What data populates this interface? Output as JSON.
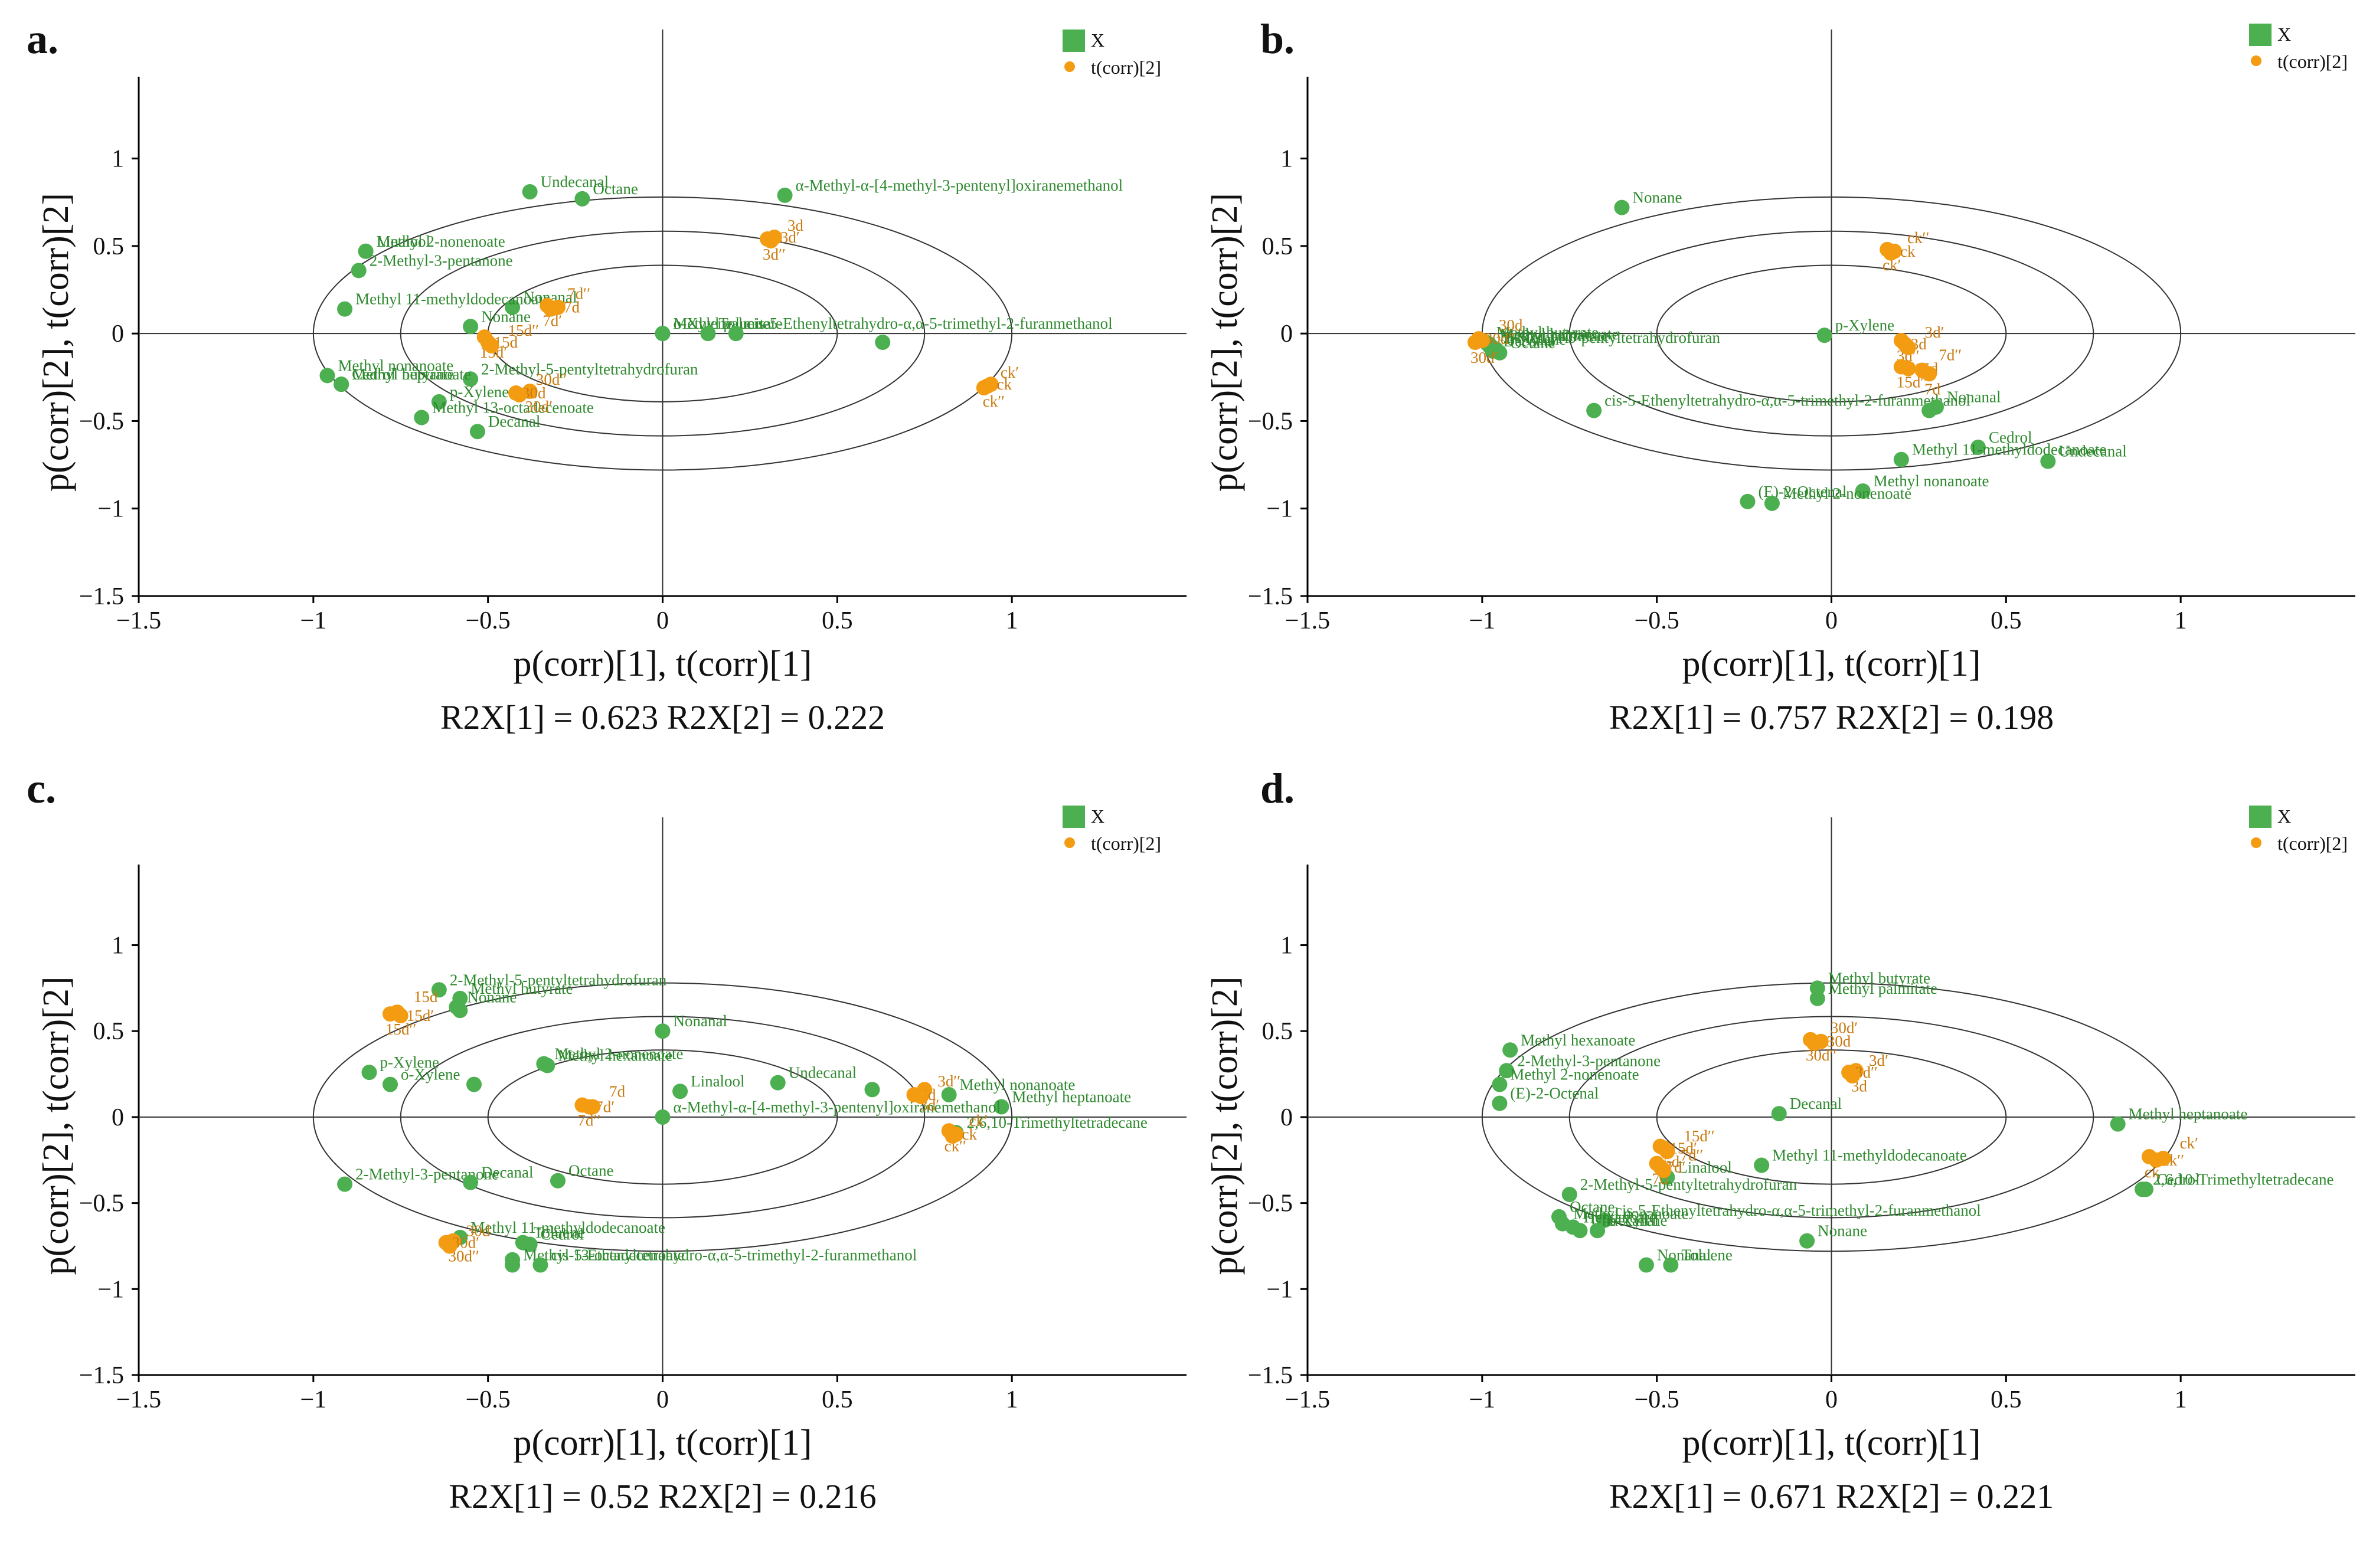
{
  "colors": {
    "variable": "#4caf50",
    "variable_text": "#2f8a2f",
    "observation": "#f39c12",
    "observation_text": "#c97a10",
    "axis": "#333333",
    "frame": "#000000"
  },
  "chart_data": [
    {
      "panel": "a.",
      "type": "scatter",
      "xlabel": "p(corr)[1], t(corr)[1]",
      "ylabel": "p(corr)[2], t(corr)[2]",
      "r2x_text": "R2X[1] = 0.623 R2X[2] = 0.222",
      "legend": {
        "variables": "X",
        "observations": "t(corr)[2]"
      },
      "xlim": [
        -1.5,
        1.5
      ],
      "ylim": [
        -1.5,
        1.4
      ],
      "xticks": [
        "−1.5",
        "−1",
        "−0.5",
        "0",
        "0.5",
        "1"
      ],
      "yticks": [
        "1",
        "0.5",
        "0",
        "−0.5",
        "−1",
        "−1.5"
      ],
      "ellipse_radii": [
        0.5,
        0.75,
        1.0
      ],
      "variables": [
        {
          "label": "Undecanal",
          "x": -0.38,
          "y": 0.81
        },
        {
          "label": "Octane",
          "x": -0.23,
          "y": 0.77
        },
        {
          "label": "α-Methyl-α-[4-methyl-3-pentenyl]oxiranemethanol",
          "x": 0.35,
          "y": 0.79
        },
        {
          "label": "Linalool",
          "x": -0.85,
          "y": 0.47
        },
        {
          "label": "Methyl 2-nonenoate",
          "x": -0.85,
          "y": 0.47
        },
        {
          "label": "2-Methyl-3-pentanone",
          "x": -0.87,
          "y": 0.36
        },
        {
          "label": "Nonanal",
          "x": -0.43,
          "y": 0.15
        },
        {
          "label": "Methyl 11-methyldodecanoate",
          "x": -0.91,
          "y": 0.14
        },
        {
          "label": "Nonane",
          "x": -0.55,
          "y": 0.04
        },
        {
          "label": "Methyl palmitate",
          "x": 0.0,
          "y": 0.0
        },
        {
          "label": "o-Xylene",
          "x": 0.0,
          "y": 0.0
        },
        {
          "label": "Toluene",
          "x": 0.13,
          "y": 0.0
        },
        {
          "label": "cis-5-Ethenyltetrahydro-α,α-5-trimethyl-2-furanmethanol",
          "x": 0.21,
          "y": 0.0
        },
        {
          "label": "",
          "x": 0.63,
          "y": -0.05
        },
        {
          "label": "Methyl nonanoate",
          "x": -0.96,
          "y": -0.24
        },
        {
          "label": "2-Methyl-5-pentyltetrahydrofuran",
          "x": -0.55,
          "y": -0.26
        },
        {
          "label": "Methyl heptanoate",
          "x": -0.92,
          "y": -0.29
        },
        {
          "label": "Methyl butyrate",
          "x": -0.92,
          "y": -0.29
        },
        {
          "label": "Cedrol",
          "x": -0.92,
          "y": -0.29
        },
        {
          "label": "p-Xylene",
          "x": -0.64,
          "y": -0.39
        },
        {
          "label": "Methyl 13-octadecenoate",
          "x": -0.69,
          "y": -0.48
        },
        {
          "label": "Decanal",
          "x": -0.53,
          "y": -0.56
        }
      ],
      "observations": [
        {
          "label": "3d′′",
          "x": 0.3,
          "y": 0.54
        },
        {
          "label": "3d′",
          "x": 0.32,
          "y": 0.55
        },
        {
          "label": "3d",
          "x": 0.31,
          "y": 0.53
        },
        {
          "label": "7d′",
          "x": -0.33,
          "y": 0.16
        },
        {
          "label": "7d",
          "x": -0.3,
          "y": 0.15
        },
        {
          "label": "7d′′",
          "x": -0.32,
          "y": 0.14
        },
        {
          "label": "15d′",
          "x": -0.51,
          "y": -0.02
        },
        {
          "label": "15d",
          "x": -0.5,
          "y": -0.05
        },
        {
          "label": "15d′′",
          "x": -0.49,
          "y": -0.07
        },
        {
          "label": "30d′",
          "x": -0.38,
          "y": -0.33
        },
        {
          "label": "30d",
          "x": -0.42,
          "y": -0.34
        },
        {
          "label": "30d′′",
          "x": -0.41,
          "y": -0.35
        },
        {
          "label": "ck′′",
          "x": 0.93,
          "y": -0.3
        },
        {
          "label": "ck",
          "x": 0.94,
          "y": -0.29
        },
        {
          "label": "ck′",
          "x": 0.92,
          "y": -0.31
        }
      ]
    },
    {
      "panel": "b.",
      "type": "scatter",
      "xlabel": "p(corr)[1], t(corr)[1]",
      "ylabel": "p(corr)[2], t(corr)[2]",
      "r2x_text": "R2X[1] = 0.757 R2X[2] = 0.198",
      "legend": {
        "variables": "X",
        "observations": "t(corr)[2]"
      },
      "xlim": [
        -1.5,
        1.5
      ],
      "ylim": [
        -1.5,
        1.4
      ],
      "xticks": [
        "−1.5",
        "−1",
        "−0.5",
        "0",
        "0.5",
        "1"
      ],
      "yticks": [
        "1",
        "0.5",
        "0",
        "−0.5",
        "−1",
        "−1.5"
      ],
      "ellipse_radii": [
        0.5,
        0.75,
        1.0
      ],
      "variables": [
        {
          "label": "Nonane",
          "x": -0.6,
          "y": 0.72
        },
        {
          "label": "Methyl butyrate",
          "x": -0.99,
          "y": -0.05
        },
        {
          "label": "Methyl heptanoate",
          "x": -0.98,
          "y": -0.06
        },
        {
          "label": "Methyl palmitate",
          "x": -0.98,
          "y": -0.07
        },
        {
          "label": "2-Methyl-5-pentyltetrahydrofuran",
          "x": -0.97,
          "y": -0.08
        },
        {
          "label": "Decanal",
          "x": -0.97,
          "y": -0.1
        },
        {
          "label": "o-Xylene",
          "x": -0.96,
          "y": -0.09
        },
        {
          "label": "Octane",
          "x": -0.95,
          "y": -0.11
        },
        {
          "label": "p-Xylene",
          "x": -0.02,
          "y": -0.01
        },
        {
          "label": "cis-5-Ethenyltetrahydro-α,α-5-trimethyl-2-furanmethanol",
          "x": -0.68,
          "y": -0.44
        },
        {
          "label": "Nonanal",
          "x": 0.3,
          "y": -0.42
        },
        {
          "label": "",
          "x": 0.28,
          "y": -0.44
        },
        {
          "label": "Cedrol",
          "x": 0.42,
          "y": -0.65
        },
        {
          "label": "Undecanal",
          "x": 0.62,
          "y": -0.73
        },
        {
          "label": "Methyl 11-methyldodecanoate",
          "x": 0.2,
          "y": -0.72
        },
        {
          "label": "Methyl nonanoate",
          "x": 0.09,
          "y": -0.9
        },
        {
          "label": "(E)-2-Octenal",
          "x": -0.24,
          "y": -0.96
        },
        {
          "label": "Methyl 2-nonenoate",
          "x": -0.17,
          "y": -0.97
        }
      ],
      "observations": [
        {
          "label": "ck′",
          "x": 0.16,
          "y": 0.48
        },
        {
          "label": "ck",
          "x": 0.18,
          "y": 0.47
        },
        {
          "label": "ck′′",
          "x": 0.17,
          "y": 0.46
        },
        {
          "label": "3d′′",
          "x": 0.2,
          "y": -0.04
        },
        {
          "label": "3d",
          "x": 0.21,
          "y": -0.06
        },
        {
          "label": "3d′",
          "x": 0.22,
          "y": -0.08
        },
        {
          "label": "15d′′",
          "x": 0.2,
          "y": -0.19
        },
        {
          "label": "15d",
          "x": 0.22,
          "y": -0.2
        },
        {
          "label": "7d′′",
          "x": 0.26,
          "y": -0.21
        },
        {
          "label": "7d",
          "x": 0.28,
          "y": -0.23
        },
        {
          "label": "30d′′",
          "x": -1.01,
          "y": -0.03
        },
        {
          "label": "30d",
          "x": -1.0,
          "y": -0.04
        },
        {
          "label": "30d′",
          "x": -1.02,
          "y": -0.05
        }
      ]
    },
    {
      "panel": "c.",
      "type": "scatter",
      "xlabel": "p(corr)[1], t(corr)[1]",
      "ylabel": "p(corr)[2], t(corr)[2]",
      "r2x_text": "R2X[1] = 0.52  R2X[2] = 0.216",
      "legend": {
        "variables": "X",
        "observations": "t(corr)[2]"
      },
      "xlim": [
        -1.5,
        1.5
      ],
      "ylim": [
        -1.5,
        1.4
      ],
      "xticks": [
        "−1.5",
        "−1",
        "−0.5",
        "0",
        "0.5",
        "1"
      ],
      "yticks": [
        "1",
        "0.5",
        "0",
        "−0.5",
        "−1",
        "−1.5"
      ],
      "ellipse_radii": [
        0.5,
        0.75,
        1.0
      ],
      "variables": [
        {
          "label": "2-Methyl-5-pentyltetrahydrofuran",
          "x": -0.64,
          "y": 0.74
        },
        {
          "label": "Methyl butyrate",
          "x": -0.58,
          "y": 0.69
        },
        {
          "label": "Nonane",
          "x": -0.59,
          "y": 0.64
        },
        {
          "label": "",
          "x": -0.58,
          "y": 0.62
        },
        {
          "label": "Nonanal",
          "x": 0.0,
          "y": 0.5
        },
        {
          "label": "Methyl 2-nonenoate",
          "x": -0.34,
          "y": 0.31
        },
        {
          "label": "Methyl hexanoate",
          "x": -0.33,
          "y": 0.3
        },
        {
          "label": "p-Xylene",
          "x": -0.84,
          "y": 0.26
        },
        {
          "label": "o-Xylene",
          "x": -0.78,
          "y": 0.19
        },
        {
          "label": "",
          "x": -0.54,
          "y": 0.19
        },
        {
          "label": "Linalool",
          "x": 0.05,
          "y": 0.15
        },
        {
          "label": "Undecanal",
          "x": 0.33,
          "y": 0.2
        },
        {
          "label": "",
          "x": 0.6,
          "y": 0.16
        },
        {
          "label": "Methyl nonanoate",
          "x": 0.82,
          "y": 0.13
        },
        {
          "label": "Methyl heptanoate",
          "x": 0.97,
          "y": 0.06
        },
        {
          "label": "2,6,10-Trimethyltetradecane",
          "x": 0.84,
          "y": -0.09
        },
        {
          "label": "2-Methyl-3-pentanone",
          "x": -0.91,
          "y": -0.39
        },
        {
          "label": "Decanal",
          "x": -0.55,
          "y": -0.38
        },
        {
          "label": "Octane",
          "x": -0.3,
          "y": -0.37
        },
        {
          "label": "Methyl 11-methyldodecanoate",
          "x": -0.58,
          "y": -0.7
        },
        {
          "label": "Toluene",
          "x": -0.4,
          "y": -0.73
        },
        {
          "label": "Cedrol",
          "x": -0.38,
          "y": -0.74
        },
        {
          "label": "",
          "x": -0.43,
          "y": -0.83
        },
        {
          "label": "Methyl 13-octadecenoate",
          "x": -0.43,
          "y": -0.86
        },
        {
          "label": "cis-5-Ethenyltetrahydro-α,α-5-trimethyl-2-furanmethanol",
          "x": -0.35,
          "y": -0.86
        },
        {
          "label": "α-Methyl-α-[4-methyl-3-pentenyl]oxiranemethanol",
          "x": 0.0,
          "y": 0.0
        }
      ],
      "observations": [
        {
          "label": "15d′′",
          "x": -0.78,
          "y": 0.6
        },
        {
          "label": "15d′",
          "x": -0.75,
          "y": 0.59
        },
        {
          "label": "15d",
          "x": -0.76,
          "y": 0.61
        },
        {
          "label": "7d′′",
          "x": -0.23,
          "y": 0.07
        },
        {
          "label": "7d′",
          "x": -0.21,
          "y": 0.06
        },
        {
          "label": "7d",
          "x": -0.2,
          "y": 0.06
        },
        {
          "label": "3d′",
          "x": 0.75,
          "y": 0.16
        },
        {
          "label": "3d",
          "x": 0.72,
          "y": 0.13
        },
        {
          "label": "3d′′",
          "x": 0.74,
          "y": 0.12
        },
        {
          "label": "ck′′",
          "x": 0.82,
          "y": -0.08
        },
        {
          "label": "ck",
          "x": 0.84,
          "y": -0.1
        },
        {
          "label": "ck′",
          "x": 0.83,
          "y": -0.11
        },
        {
          "label": "30d′′",
          "x": -0.6,
          "y": -0.72
        },
        {
          "label": "30d′",
          "x": -0.62,
          "y": -0.73
        },
        {
          "label": "30d",
          "x": -0.61,
          "y": -0.75
        }
      ]
    },
    {
      "panel": "d.",
      "type": "scatter",
      "xlabel": "p(corr)[1], t(corr)[1]",
      "ylabel": "p(corr)[2], t(corr)[2]",
      "r2x_text": "R2X[1] = 0.671 R2X[2] = 0.221",
      "legend": {
        "variables": "X",
        "observations": "t(corr)[2]"
      },
      "xlim": [
        -1.5,
        1.5
      ],
      "ylim": [
        -1.5,
        1.4
      ],
      "xticks": [
        "−1.5",
        "−1",
        "−0.5",
        "0",
        "0.5",
        "1"
      ],
      "yticks": [
        "1",
        "0.5",
        "0",
        "−0.5",
        "−1",
        "−1.5"
      ],
      "ellipse_radii": [
        0.5,
        0.75,
        1.0
      ],
      "variables": [
        {
          "label": "Methyl butyrate",
          "x": -0.04,
          "y": 0.75
        },
        {
          "label": "Methyl palmitate",
          "x": -0.04,
          "y": 0.69
        },
        {
          "label": "Methyl hexanoate",
          "x": -0.92,
          "y": 0.39
        },
        {
          "label": "2-Methyl-3-pentanone",
          "x": -0.93,
          "y": 0.27
        },
        {
          "label": "Methyl 2-nonenoate",
          "x": -0.95,
          "y": 0.19
        },
        {
          "label": "(E)-2-Octenal",
          "x": -0.95,
          "y": 0.08
        },
        {
          "label": "Decanal",
          "x": -0.15,
          "y": 0.02
        },
        {
          "label": "Methyl heptanoate",
          "x": 0.82,
          "y": -0.04
        },
        {
          "label": "Methyl 11-methyldodecanoate",
          "x": -0.2,
          "y": -0.28
        },
        {
          "label": "Linalool",
          "x": -0.47,
          "y": -0.35
        },
        {
          "label": "2-Methyl-5-pentyltetrahydrofuran",
          "x": -0.75,
          "y": -0.45
        },
        {
          "label": "Octane",
          "x": -0.78,
          "y": -0.58
        },
        {
          "label": "cis-5-Ethenyltetrahydro-α,α-5-trimethyl-2-furanmethanol",
          "x": -0.65,
          "y": -0.6
        },
        {
          "label": "Methyl nonanoate",
          "x": -0.77,
          "y": -0.62
        },
        {
          "label": "Heptanoate",
          "x": -0.74,
          "y": -0.64
        },
        {
          "label": "Undecanal",
          "x": -0.72,
          "y": -0.66
        },
        {
          "label": "o-Xylene",
          "x": -0.67,
          "y": -0.66
        },
        {
          "label": "Nonane",
          "x": -0.07,
          "y": -0.72
        },
        {
          "label": "Nonanal",
          "x": -0.53,
          "y": -0.86
        },
        {
          "label": "Toluene",
          "x": -0.46,
          "y": -0.86
        },
        {
          "label": "2,6,10-Trimethyltetradecane",
          "x": 0.89,
          "y": -0.42
        },
        {
          "label": "Cedrol",
          "x": 0.9,
          "y": -0.42
        }
      ],
      "observations": [
        {
          "label": "30d′′",
          "x": -0.06,
          "y": 0.45
        },
        {
          "label": "30d",
          "x": -0.03,
          "y": 0.44
        },
        {
          "label": "30d′",
          "x": -0.05,
          "y": 0.43
        },
        {
          "label": "3d",
          "x": 0.07,
          "y": 0.27
        },
        {
          "label": "3d′′",
          "x": 0.05,
          "y": 0.26
        },
        {
          "label": "3d′",
          "x": 0.06,
          "y": 0.24
        },
        {
          "label": "15d",
          "x": -0.49,
          "y": -0.17
        },
        {
          "label": "15d′",
          "x": -0.48,
          "y": -0.18
        },
        {
          "label": "15d′′",
          "x": -0.47,
          "y": -0.2
        },
        {
          "label": "7d",
          "x": -0.5,
          "y": -0.27
        },
        {
          "label": "7d′",
          "x": -0.49,
          "y": -0.29
        },
        {
          "label": "7d′′",
          "x": -0.48,
          "y": -0.31
        },
        {
          "label": "ck",
          "x": 0.91,
          "y": -0.23
        },
        {
          "label": "ck′′",
          "x": 0.93,
          "y": -0.25
        },
        {
          "label": "ck′",
          "x": 0.95,
          "y": -0.24
        }
      ]
    }
  ]
}
